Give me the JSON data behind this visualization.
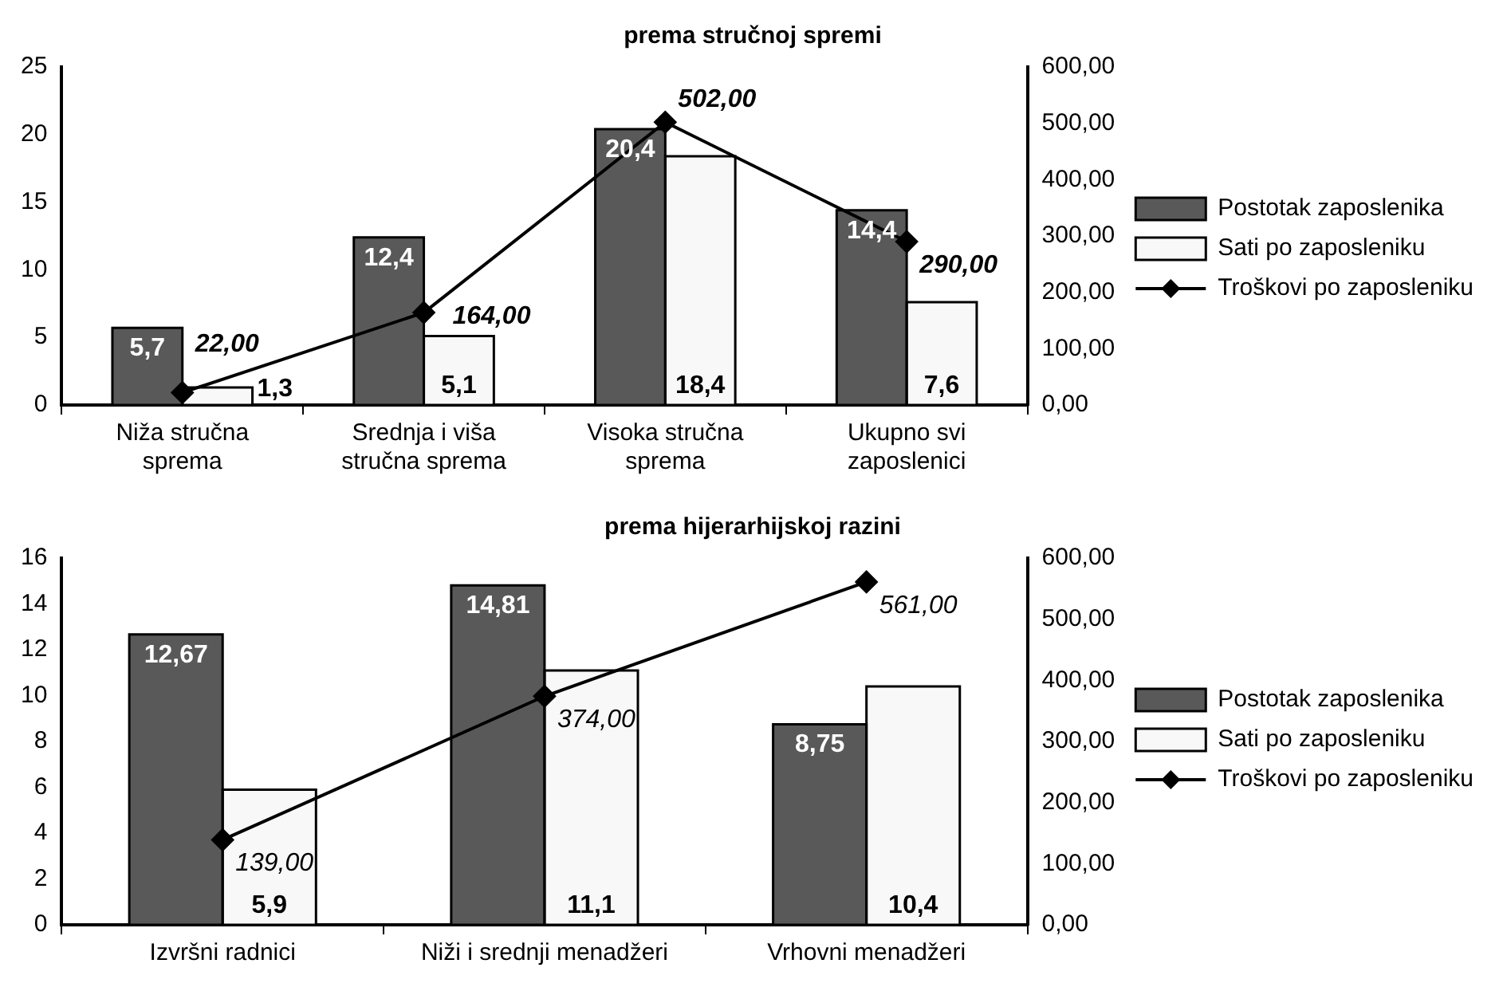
{
  "chart_data": [
    {
      "type": "bar",
      "title": "prema stručnoj spremi",
      "categories": [
        "Niža stručna sprema",
        "Srednja i viša stručna sprema",
        "Visoka stručna sprema",
        "Ukupno svi zaposlenici"
      ],
      "series": [
        {
          "name": "Postotak zaposlenika",
          "color": "#595959",
          "values": [
            5.7,
            12.4,
            20.4,
            14.4
          ],
          "value_labels": [
            "5,7",
            "12,4",
            "20,4",
            "14,4"
          ]
        },
        {
          "name": "Sati po zaposleniku",
          "color": "#f8f8f8",
          "values": [
            1.3,
            5.1,
            18.4,
            7.6
          ],
          "value_labels": [
            "1,3",
            "5,1",
            "18,4",
            "7,6"
          ]
        },
        {
          "name": "Troškovi po zaposleniku",
          "type": "line",
          "axis": "y2",
          "color": "#000000",
          "values": [
            22,
            164,
            502,
            290
          ],
          "value_labels": [
            "22,00",
            "164,00",
            "502,00",
            "290,00"
          ]
        }
      ],
      "ylim": [
        0,
        25
      ],
      "yticks": [
        0,
        5,
        10,
        15,
        20,
        25
      ],
      "y2lim": [
        0,
        600
      ],
      "y2ticks": [
        {
          "value": 0,
          "label": "0,00"
        },
        {
          "value": 100,
          "label": "100,00"
        },
        {
          "value": 200,
          "label": "200,00"
        },
        {
          "value": 300,
          "label": "300,00"
        },
        {
          "value": 400,
          "label": "400,00"
        },
        {
          "value": 500,
          "label": "500,00"
        },
        {
          "value": 600,
          "label": "600,00"
        }
      ],
      "legend": "right",
      "marker": "diamond",
      "grid": false
    },
    {
      "type": "bar",
      "title": "prema hijerarhijskoj razini",
      "categories": [
        "Izvršni radnici",
        "Niži i srednji menadžeri",
        "Vrhovni menadžeri"
      ],
      "series": [
        {
          "name": "Postotak zaposlenika",
          "color": "#595959",
          "values": [
            12.67,
            14.81,
            8.75
          ],
          "value_labels": [
            "12,67",
            "14,81",
            "8,75"
          ]
        },
        {
          "name": "Sati po zaposleniku",
          "color": "#f8f8f8",
          "values": [
            5.9,
            11.1,
            10.4
          ],
          "value_labels": [
            "5,9",
            "11,1",
            "10,4"
          ]
        },
        {
          "name": "Troškovi po zaposleniku",
          "type": "line",
          "axis": "y2",
          "color": "#000000",
          "values": [
            139,
            374,
            561
          ],
          "value_labels": [
            "139,00",
            "374,00",
            "561,00"
          ]
        }
      ],
      "ylim": [
        0,
        16
      ],
      "yticks": [
        0,
        2,
        4,
        6,
        8,
        10,
        12,
        14,
        16
      ],
      "y2lim": [
        0,
        600
      ],
      "y2ticks": [
        {
          "value": 0,
          "label": "0,00"
        },
        {
          "value": 100,
          "label": "100,00"
        },
        {
          "value": 200,
          "label": "200,00"
        },
        {
          "value": 300,
          "label": "300,00"
        },
        {
          "value": 400,
          "label": "400,00"
        },
        {
          "value": 500,
          "label": "500,00"
        },
        {
          "value": 600,
          "label": "600,00"
        }
      ],
      "legend": "right",
      "marker": "diamond",
      "grid": false
    }
  ]
}
